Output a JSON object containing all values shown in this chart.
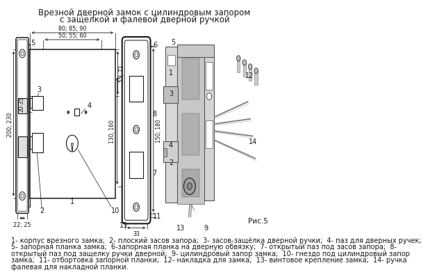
{
  "title_line1": "Врезной дверной замок с цилиндровым запором",
  "title_line2": "с защёлкой и фалевой дверной ручкой",
  "fig_label": "Рис.5",
  "caption_lines": [
    "1- корпус врезного замка;  2- плоский засов запора;  3- засов-защёлка дверной ручки;  4- паз для дверных ручек;",
    "5- запорная планка замка;  6-запорная планка на дверную обвязку;  7- открытый паз под засов запора;  8-",
    "открытый паз под защелку ручки дверной;  9- цилиндровый запор замка;  10- гнездо под цилиндровый запор",
    "замка;  11- отбортовка запорной планки;  12- накладка для замка;  13- винтовое крепление замка;  14- ручка",
    "фалевая для накладной планки."
  ],
  "bg_color": "#ffffff",
  "line_color": "#1a1a1a",
  "dim_color": "#1a1a1a",
  "gray_fill": "#cccccc",
  "title_fontsize": 8.5,
  "caption_fontsize": 7.0,
  "label_fontsize": 7.0
}
